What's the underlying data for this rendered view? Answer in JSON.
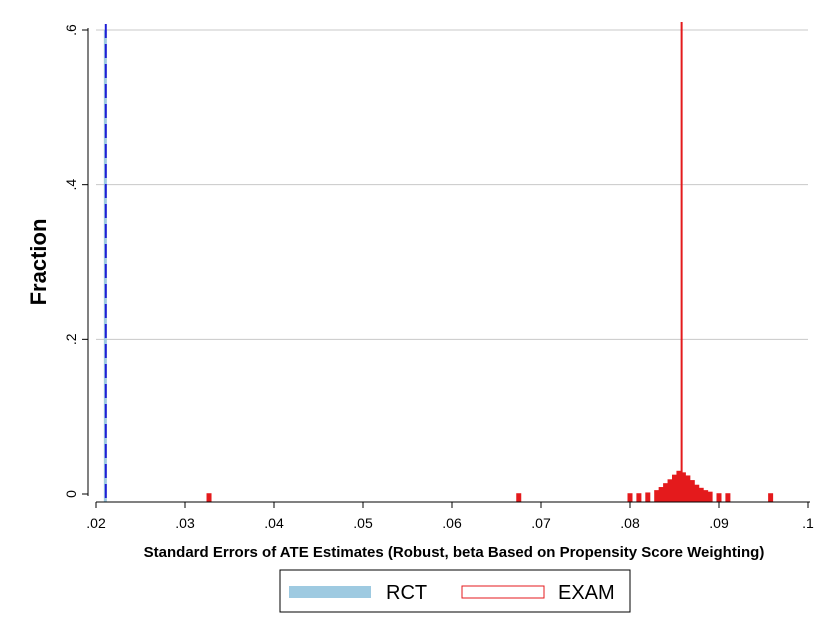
{
  "chart_data": {
    "type": "bar",
    "title": "",
    "xlabel": "Standard Errors of ATE Estimates (Robust, beta Based on Propensity Score Weighting)",
    "ylabel": "Fraction",
    "xlim": [
      0.02,
      0.1
    ],
    "ylim": [
      0,
      0.6
    ],
    "x_ticks": [
      0.02,
      0.03,
      0.04,
      0.05,
      0.06,
      0.07,
      0.08,
      0.09,
      0.1
    ],
    "x_tick_labels": [
      ".02",
      ".03",
      ".04",
      ".05",
      ".06",
      ".07",
      ".08",
      ".09",
      ".1"
    ],
    "y_ticks": [
      0,
      0.2,
      0.4,
      0.6
    ],
    "y_tick_labels": [
      "0",
      ".2",
      ".4",
      ".6"
    ],
    "grid": true,
    "legend_position": "bottom",
    "series": [
      {
        "name": "RCT",
        "color": "#9ecae1",
        "style": "filled histogram",
        "mean_line": {
          "x": 0.0211,
          "style": "dashed",
          "color": "#1f1fd6"
        },
        "bins": [
          {
            "x": 0.02105,
            "fraction": 0.6
          }
        ]
      },
      {
        "name": "EXAM",
        "color": "#e41a1c",
        "style": "outlined histogram",
        "mean_line": {
          "x": 0.0858,
          "style": "solid",
          "color": "#e41a1c"
        },
        "bins": [
          {
            "x": 0.0327,
            "fraction": 0.001
          },
          {
            "x": 0.0675,
            "fraction": 0.001
          },
          {
            "x": 0.08,
            "fraction": 0.001
          },
          {
            "x": 0.081,
            "fraction": 0.001
          },
          {
            "x": 0.082,
            "fraction": 0.002
          },
          {
            "x": 0.083,
            "fraction": 0.005
          },
          {
            "x": 0.0835,
            "fraction": 0.009
          },
          {
            "x": 0.084,
            "fraction": 0.014
          },
          {
            "x": 0.0845,
            "fraction": 0.019
          },
          {
            "x": 0.085,
            "fraction": 0.025
          },
          {
            "x": 0.0855,
            "fraction": 0.03
          },
          {
            "x": 0.086,
            "fraction": 0.028
          },
          {
            "x": 0.0865,
            "fraction": 0.024
          },
          {
            "x": 0.087,
            "fraction": 0.018
          },
          {
            "x": 0.0875,
            "fraction": 0.012
          },
          {
            "x": 0.088,
            "fraction": 0.008
          },
          {
            "x": 0.0885,
            "fraction": 0.005
          },
          {
            "x": 0.089,
            "fraction": 0.003
          },
          {
            "x": 0.09,
            "fraction": 0.001
          },
          {
            "x": 0.091,
            "fraction": 0.001
          },
          {
            "x": 0.0958,
            "fraction": 0.001
          }
        ]
      }
    ]
  }
}
